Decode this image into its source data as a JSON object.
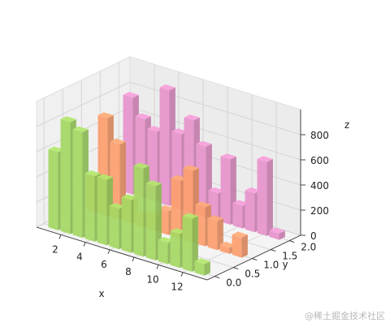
{
  "chart_data": {
    "type": "bar3d",
    "title": "",
    "xlabel": "x",
    "ylabel": "y",
    "zlabel": "z",
    "x": [
      1,
      2,
      3,
      4,
      5,
      6,
      7,
      8,
      9,
      10,
      11,
      12,
      13
    ],
    "xticks": [
      "2",
      "4",
      "6",
      "8",
      "10",
      "12"
    ],
    "yticks": [
      "0.0",
      "0.5",
      "1.0",
      "1.5",
      "2.0"
    ],
    "zticks": [
      "0",
      "200",
      "400",
      "600",
      "800"
    ],
    "xlim": [
      0,
      14
    ],
    "ylim": [
      -0.2,
      2.3
    ],
    "zlim": [
      0,
      1000
    ],
    "grid": true,
    "series": [
      {
        "y": 0,
        "color": "#a5d864",
        "values": [
          620,
          890,
          840,
          520,
          520,
          320,
          420,
          700,
          590,
          170,
          270,
          420,
          90
        ]
      },
      {
        "y": 1,
        "color": "#fc9f6f",
        "values": [
          260,
          780,
          600,
          180,
          90,
          110,
          190,
          460,
          570,
          310,
          230,
          50,
          160
        ]
      },
      {
        "y": 2,
        "color": "#e794cc",
        "values": [
          770,
          630,
          560,
          920,
          600,
          740,
          560,
          220,
          520,
          180,
          310,
          590,
          50
        ]
      }
    ]
  },
  "watermark": "@稀土掘金技术社区"
}
